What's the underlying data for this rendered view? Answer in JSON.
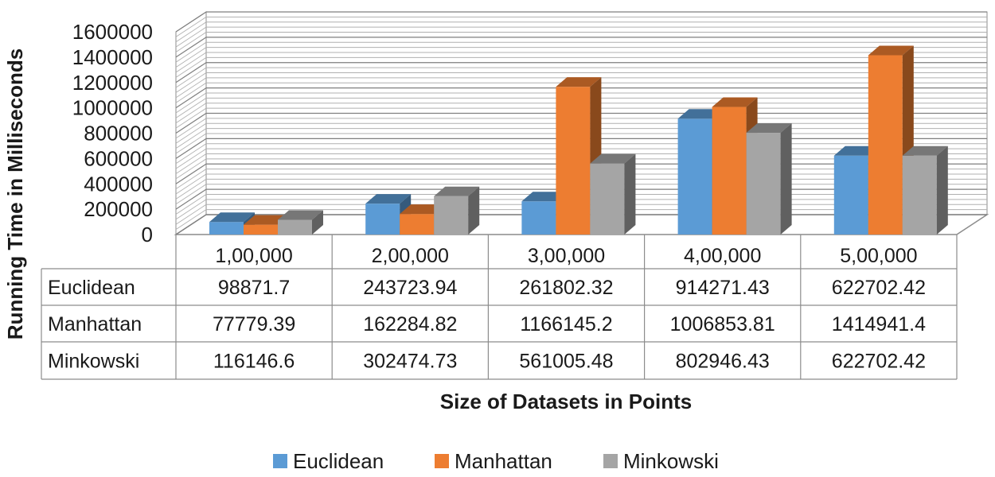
{
  "chart_data": {
    "type": "bar",
    "title": "",
    "xlabel": "Size of Datasets in Points",
    "ylabel": "Running Time in Milliseconds",
    "ylim": [
      0,
      1600000
    ],
    "y_ticks": [
      "0",
      "200000",
      "400000",
      "600000",
      "800000",
      "1000000",
      "1200000",
      "1400000",
      "1600000"
    ],
    "categories": [
      "1,00,000",
      "2,00,000",
      "3,00,000",
      "4,00,000",
      "5,00,000"
    ],
    "series": [
      {
        "name": "Euclidean",
        "color": "#5B9BD5",
        "values": [
          98871.7,
          243723.94,
          261802.32,
          914271.43,
          622702.42
        ],
        "labels": [
          "98871.7",
          "243723.94",
          "261802.32",
          "914271.43",
          "622702.42"
        ]
      },
      {
        "name": "Manhattan",
        "color": "#ED7D31",
        "values": [
          77779.39,
          162284.82,
          1166145.2,
          1006853.81,
          1414941.4
        ],
        "labels": [
          "77779.39",
          "162284.82",
          "1166145.2",
          "1006853.81",
          "1414941.4"
        ]
      },
      {
        "name": "Minkowski",
        "color": "#A5A5A5",
        "values": [
          116146.6,
          302474.73,
          561005.48,
          802946.43,
          622702.42
        ],
        "labels": [
          "116146.6",
          "302474.73",
          "561005.48",
          "802946.43",
          "622702.42"
        ]
      }
    ],
    "grid": true,
    "legend": "bottom",
    "data_table": true,
    "style": "3d-clustered-column"
  }
}
